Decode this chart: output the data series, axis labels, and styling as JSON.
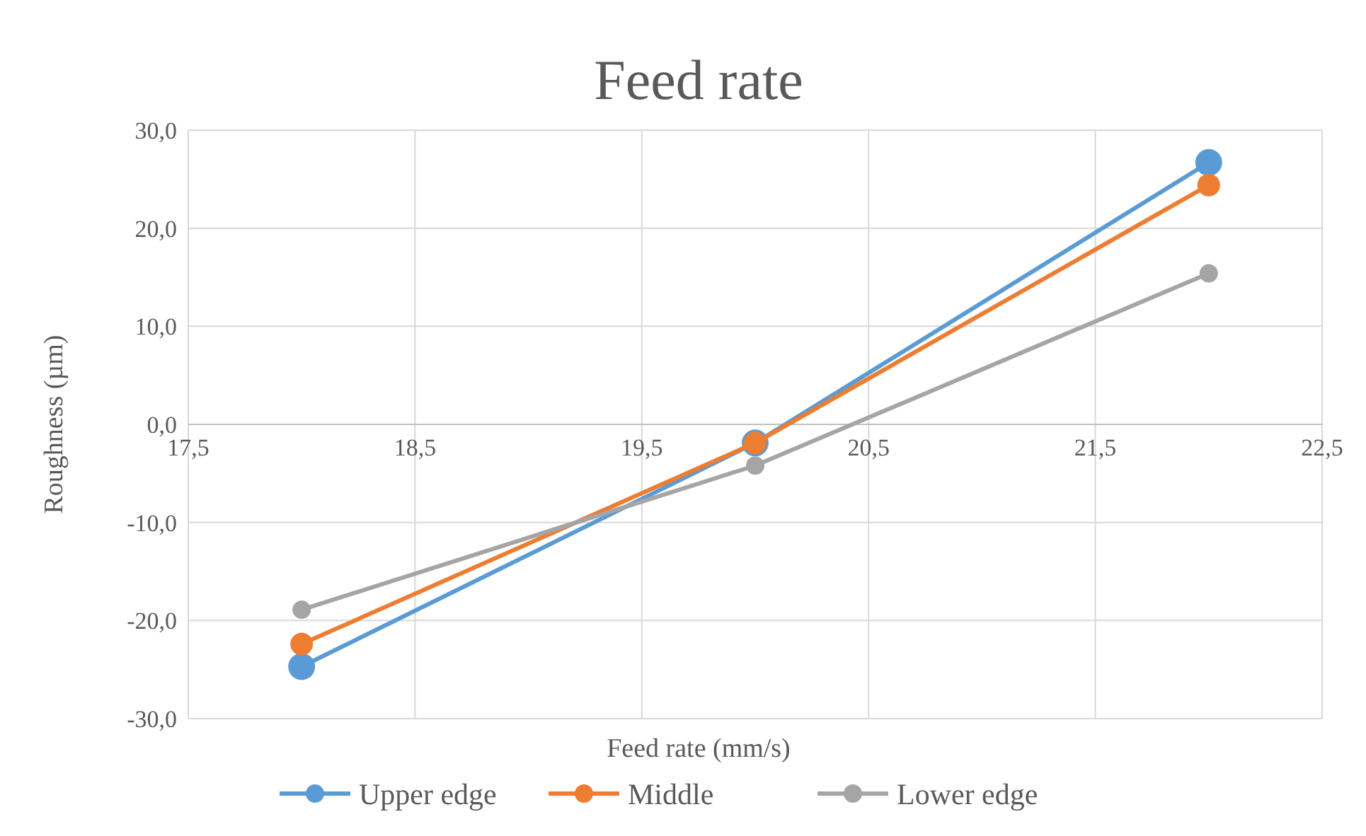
{
  "chart_data": {
    "type": "line",
    "title": "Feed rate",
    "xlabel": "Feed rate (mm/s)",
    "ylabel": "Roughness (µm)",
    "x": [
      18,
      20,
      22
    ],
    "series": [
      {
        "name": "Upper edge",
        "color": "#5b9bd5",
        "values": [
          -24.7,
          -1.9,
          26.7
        ]
      },
      {
        "name": "Middle",
        "color": "#ed7d31",
        "values": [
          -22.4,
          -1.9,
          24.4
        ]
      },
      {
        "name": "Lower edge",
        "color": "#a5a5a5",
        "values": [
          -18.9,
          -4.2,
          15.4
        ]
      }
    ],
    "xlim": [
      17.5,
      22.5
    ],
    "xticks": [
      {
        "value": 17.5,
        "label": "17,5"
      },
      {
        "value": 18.5,
        "label": "18,5"
      },
      {
        "value": 19.5,
        "label": "19,5"
      },
      {
        "value": 20.5,
        "label": "20,5"
      },
      {
        "value": 21.5,
        "label": "21,5"
      },
      {
        "value": 22.5,
        "label": "22,5"
      }
    ],
    "ylim": [
      -30,
      30
    ],
    "yticks": [
      {
        "value": -30,
        "label": "-30,0"
      },
      {
        "value": -20,
        "label": "-20,0"
      },
      {
        "value": -10,
        "label": "-10,0"
      },
      {
        "value": 0,
        "label": "0,0"
      },
      {
        "value": 10,
        "label": "10,0"
      },
      {
        "value": 20,
        "label": "20,0"
      },
      {
        "value": 30,
        "label": "30,0"
      }
    ],
    "grid": true,
    "legend": "bottom",
    "marker": "circle",
    "line_style": "solid"
  }
}
